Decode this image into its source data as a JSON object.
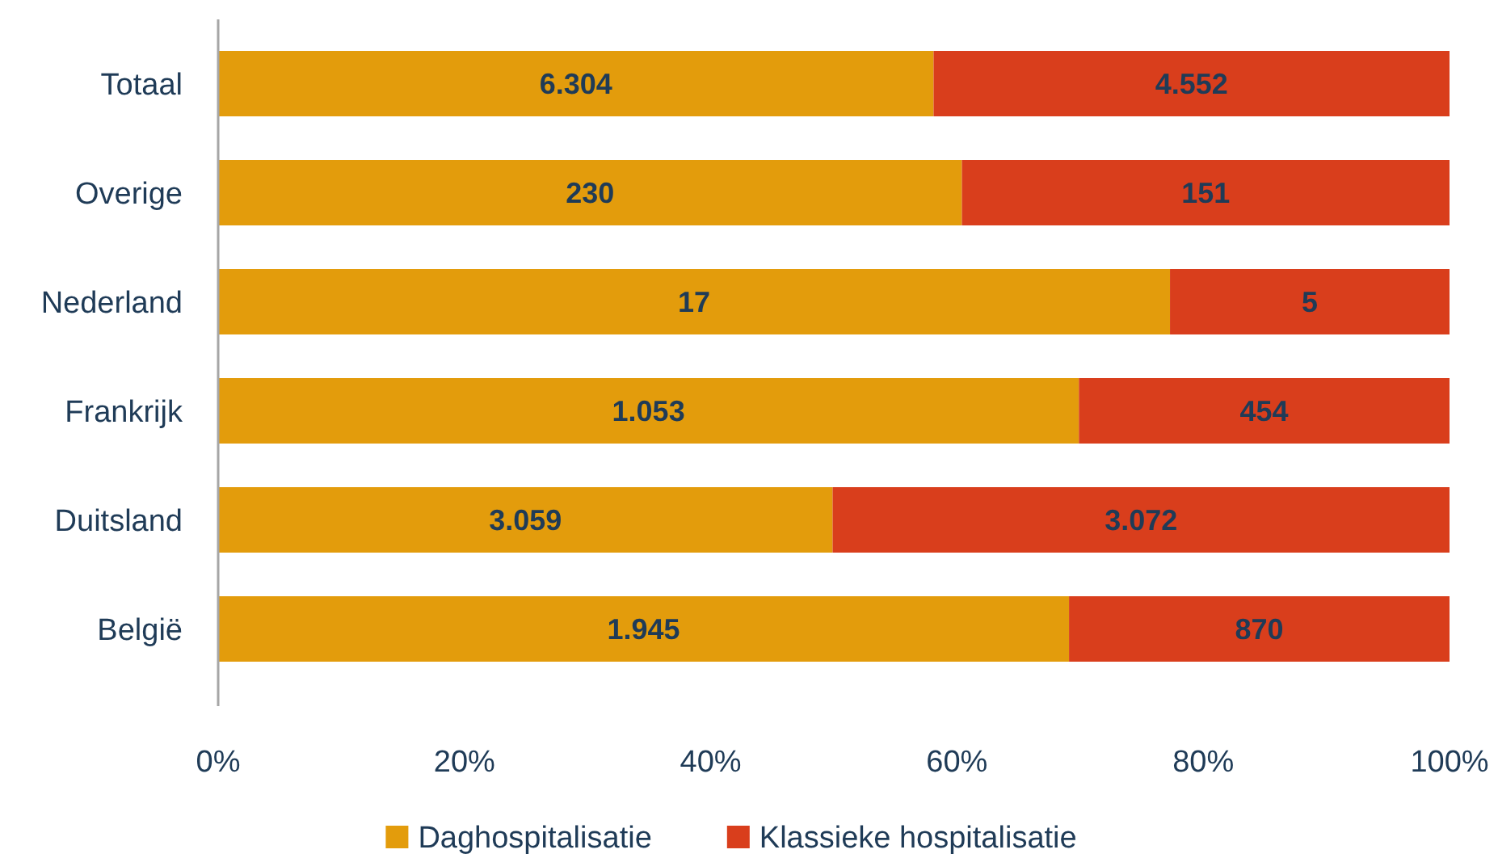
{
  "chart_data": {
    "type": "bar",
    "orientation": "horizontal",
    "stacked": true,
    "categories": [
      "Totaal",
      "Overige",
      "Nederland",
      "Frankrijk",
      "Duitsland",
      "België"
    ],
    "series": [
      {
        "name": "Daghospitalisatie",
        "color": "#e39c0c",
        "values": [
          58.1,
          60.4,
          77.3,
          69.9,
          49.9,
          69.1
        ]
      },
      {
        "name": "Klassieke hospitalisatie",
        "color": "#d93e1c",
        "values": [
          41.9,
          39.6,
          22.7,
          30.1,
          50.1,
          30.9
        ]
      }
    ],
    "annotations": [
      "6.304",
      "4.552",
      "230",
      "151",
      "17",
      "5",
      "1.053",
      "454",
      "3.059",
      "3.072",
      "1.945",
      "870"
    ],
    "xlim": [
      0,
      100
    ],
    "xticks": [
      {
        "value": 0,
        "label": "0%"
      },
      {
        "value": 20,
        "label": "20%"
      },
      {
        "value": 40,
        "label": "40%"
      },
      {
        "value": 60,
        "label": "60%"
      },
      {
        "value": 80,
        "label": "80%"
      },
      {
        "value": 100,
        "label": "100%"
      }
    ],
    "grid": false,
    "legend": "bottom"
  }
}
